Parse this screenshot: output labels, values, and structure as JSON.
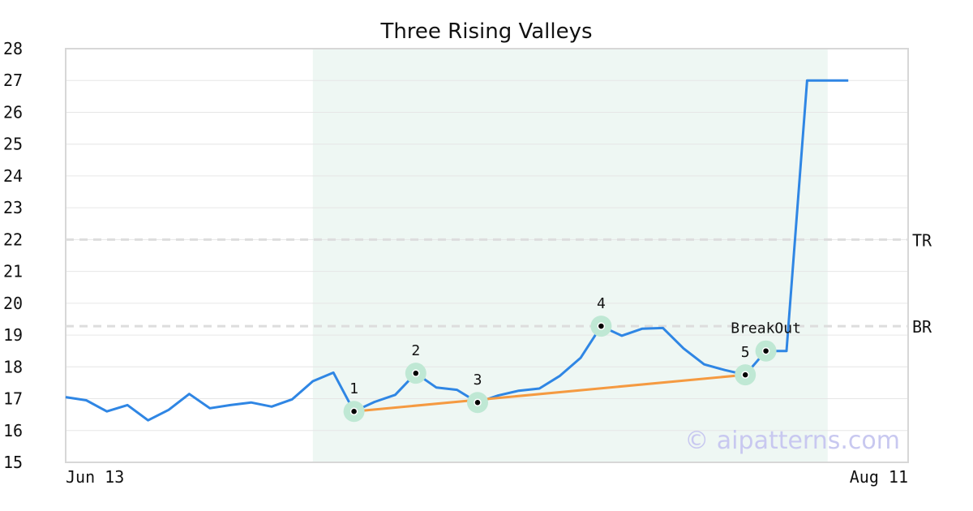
{
  "chart_data": {
    "type": "line",
    "title": "Three Rising Valleys",
    "xlabel": "",
    "ylabel": "",
    "ylim": [
      15,
      28
    ],
    "y_ticks": [
      15,
      16,
      17,
      18,
      19,
      20,
      21,
      22,
      23,
      24,
      25,
      26,
      27,
      28
    ],
    "x_tick_labels": [
      {
        "label": "Jun 13",
        "at": "start"
      },
      {
        "label": "Aug 11",
        "at": "end"
      }
    ],
    "grid": true,
    "series": [
      {
        "color": "#2f86e4",
        "values": [
          17.05,
          16.95,
          16.6,
          16.8,
          16.32,
          16.65,
          17.15,
          16.7,
          16.8,
          16.88,
          16.75,
          16.98,
          17.55,
          17.82,
          16.6,
          16.9,
          17.12,
          17.8,
          17.35,
          17.28,
          16.88,
          17.1,
          17.25,
          17.32,
          17.72,
          18.28,
          19.28,
          18.98,
          19.2,
          19.22,
          18.58,
          18.08,
          17.9,
          17.75,
          18.5,
          18.5,
          27.0,
          27.0,
          27.0
        ]
      }
    ],
    "highlight_range": {
      "start_index": 12,
      "end_index": 37,
      "color": "#eef7f3"
    },
    "reference_lines": [
      {
        "label": "TR",
        "value": 22.0,
        "color": "#dddddd"
      },
      {
        "label": "BR",
        "value": 19.28,
        "color": "#dddddd"
      }
    ],
    "points": [
      {
        "label": "1",
        "index": 14,
        "value": 16.6
      },
      {
        "label": "2",
        "index": 17,
        "value": 17.8
      },
      {
        "label": "3",
        "index": 20,
        "value": 16.88
      },
      {
        "label": "4",
        "index": 26,
        "value": 19.28
      },
      {
        "label": "5",
        "index": 33,
        "value": 17.75
      },
      {
        "label": "BreakOut",
        "index": 34,
        "value": 18.5
      }
    ],
    "trendline": {
      "from_index": 14,
      "from_value": 16.6,
      "to_index": 33,
      "to_value": 17.75,
      "color": "#f59a41"
    },
    "watermark": "© aipatterns.com"
  }
}
